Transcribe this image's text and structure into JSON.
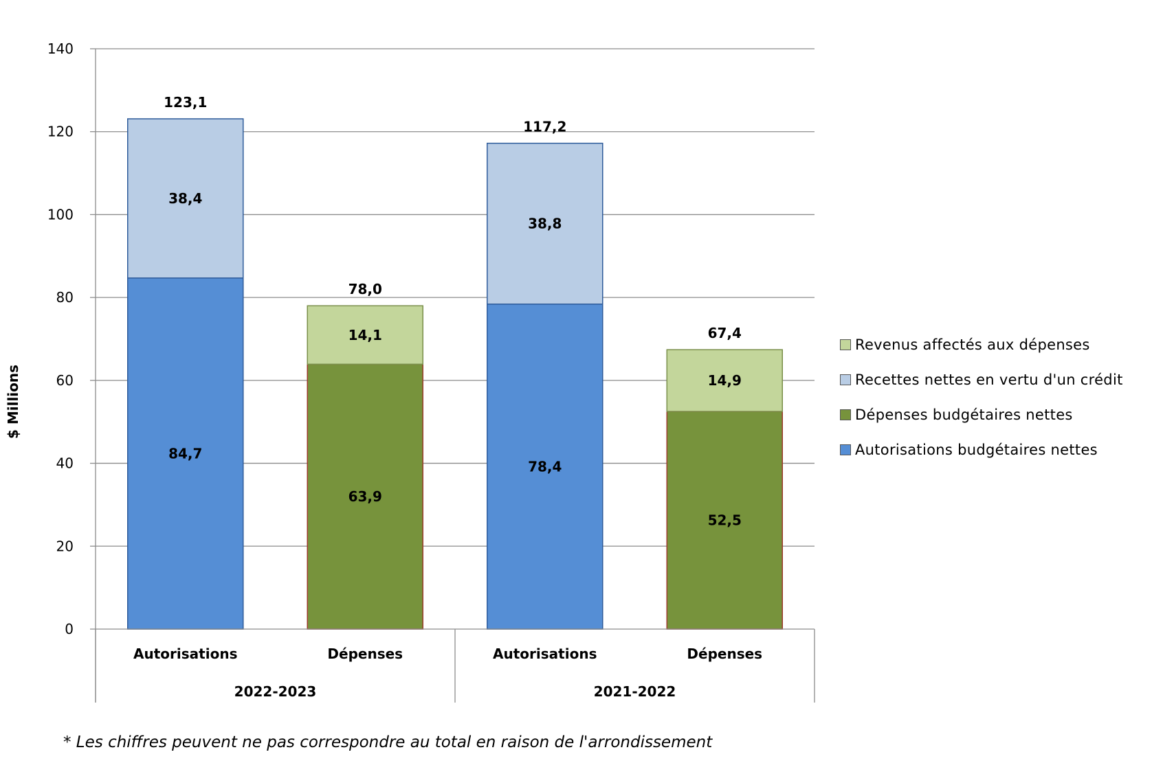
{
  "chart_data": {
    "type": "bar",
    "stacked": true,
    "ylabel": "$ Millions",
    "ylim": [
      0,
      140
    ],
    "yticks": [
      0,
      20,
      40,
      60,
      80,
      100,
      120,
      140
    ],
    "grid": true,
    "legend_position": "right",
    "groups": [
      "2022-2023",
      "2021-2022"
    ],
    "bars": [
      {
        "group": "2022-2023",
        "label": "Autorisations",
        "total": "123,1",
        "segments": [
          {
            "series": "Autorisations budgétaires nettes",
            "value": 84.7,
            "label": "84,7"
          },
          {
            "series": "Recettes nettes en vertu d'un crédit",
            "value": 38.4,
            "label": "38,4"
          }
        ]
      },
      {
        "group": "2022-2023",
        "label": "Dépenses",
        "total": "78,0",
        "segments": [
          {
            "series": "Dépenses budgétaires nettes",
            "value": 63.9,
            "label": "63,9"
          },
          {
            "series": "Revenus affectés aux dépenses",
            "value": 14.1,
            "label": "14,1"
          }
        ]
      },
      {
        "group": "2021-2022",
        "label": "Autorisations",
        "total": "117,2",
        "segments": [
          {
            "series": "Autorisations budgétaires nettes",
            "value": 78.4,
            "label": "78,4"
          },
          {
            "series": "Recettes nettes en vertu d'un crédit",
            "value": 38.8,
            "label": "38,8"
          }
        ]
      },
      {
        "group": "2021-2022",
        "label": "Dépenses",
        "total": "67,4",
        "segments": [
          {
            "series": "Dépenses budgétaires nettes",
            "value": 52.5,
            "label": "52,5"
          },
          {
            "series": "Revenus affectés aux dépenses",
            "value": 14.9,
            "label": "14,9"
          }
        ]
      }
    ],
    "series": [
      {
        "name": "Revenus affectés aux dépenses",
        "color": "#c3d69b",
        "border": "#7a8f4a"
      },
      {
        "name": "Recettes nettes en vertu d'un crédit",
        "color": "#b9cde5",
        "border": "#2e5b9a"
      },
      {
        "name": "Dépenses budgétaires nettes",
        "color": "#77933c",
        "border": "#9b3a2c"
      },
      {
        "name": "Autorisations budgétaires nettes",
        "color": "#558ed5",
        "border": "#2e5b9a"
      }
    ],
    "footnote": "* Les chiffres peuvent ne pas correspondre au total en raison de l'arrondissement"
  }
}
